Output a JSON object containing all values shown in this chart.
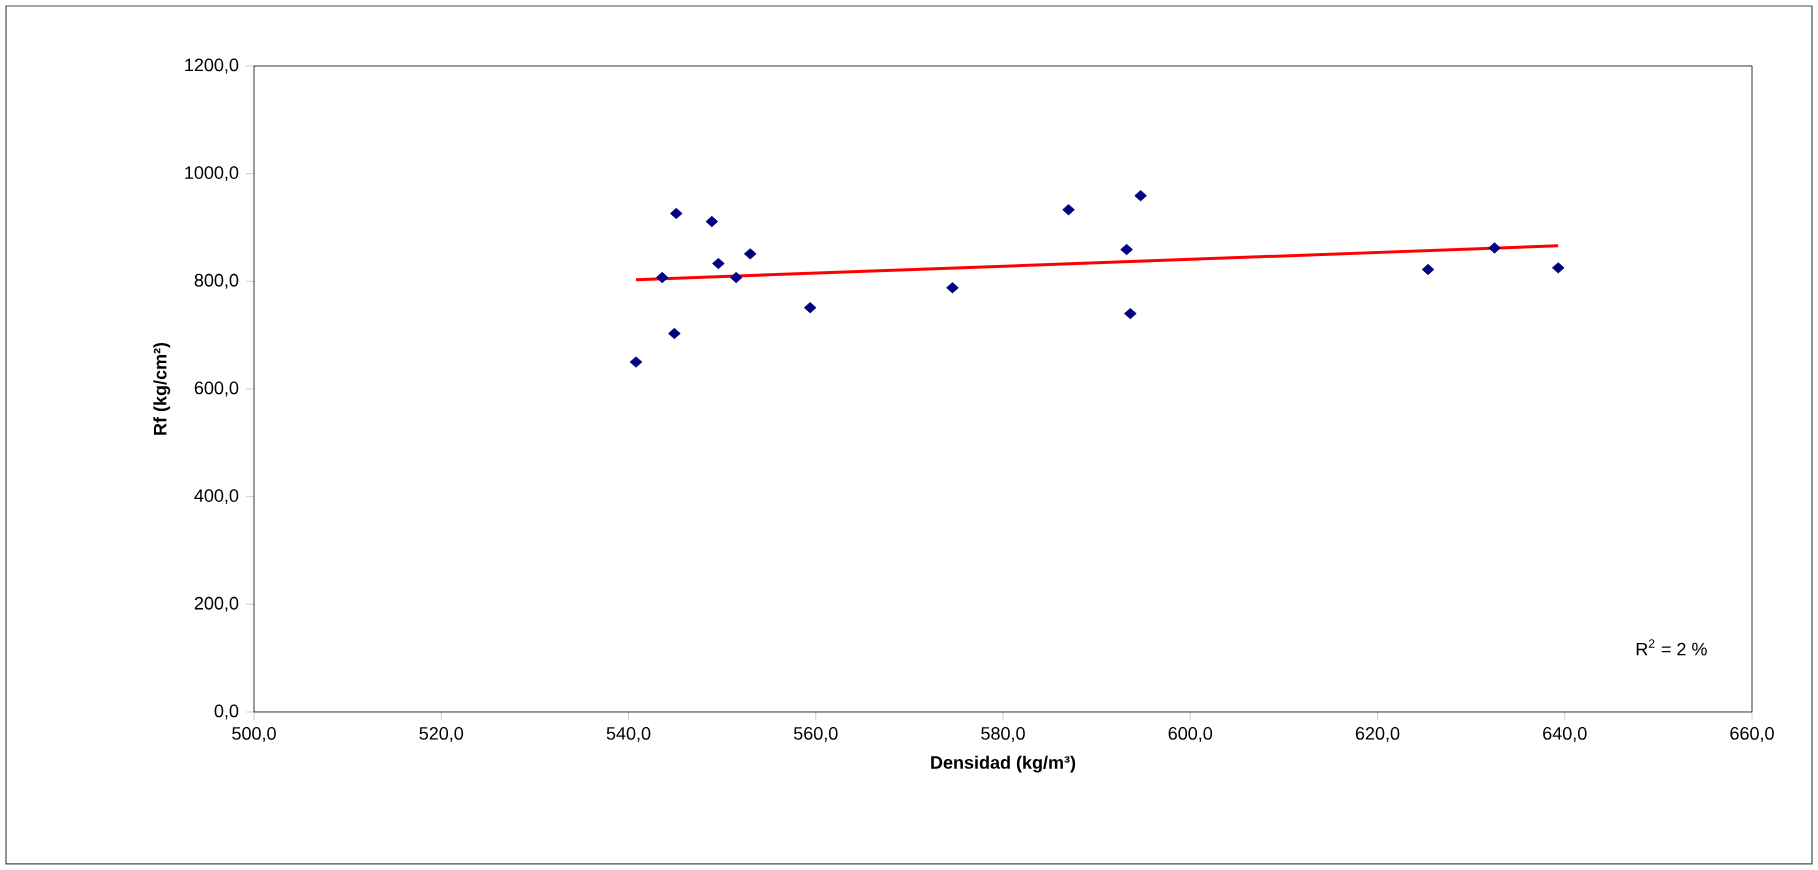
{
  "chart_data": {
    "type": "scatter",
    "xlabel": "Densidad (kg/m³)",
    "ylabel": "Rf (kg/cm²)",
    "annotations": [
      "R$^{2}$ = 2 %"
    ],
    "xlim": [
      500,
      660
    ],
    "ylim": [
      0,
      1200
    ],
    "xticks": [
      {
        "value": 500,
        "label": "500,0"
      },
      {
        "value": 520,
        "label": "520,0"
      },
      {
        "value": 540,
        "label": "540,0"
      },
      {
        "value": 560,
        "label": "560,0"
      },
      {
        "value": 580,
        "label": "580,0"
      },
      {
        "value": 600,
        "label": "600,0"
      },
      {
        "value": 620,
        "label": "620,0"
      },
      {
        "value": 640,
        "label": "640,0"
      },
      {
        "value": 660,
        "label": "660,0"
      }
    ],
    "yticks": [
      {
        "value": 0,
        "label": "0,0"
      },
      {
        "value": 200,
        "label": "200,0"
      },
      {
        "value": 400,
        "label": "400,0"
      },
      {
        "value": 600,
        "label": "600,0"
      },
      {
        "value": 800,
        "label": "800,0"
      },
      {
        "value": 1000,
        "label": "1000,0"
      },
      {
        "value": 1200,
        "label": "1200,0"
      }
    ],
    "grid": false,
    "series": [
      {
        "color": "#000080",
        "marker": "diamond",
        "x": [
          540.8,
          543.6,
          545.1,
          544.9,
          548.9,
          549.6,
          551.5,
          553.0,
          559.4,
          574.6,
          587.0,
          593.2,
          593.6,
          594.7,
          625.4,
          632.5,
          639.3
        ],
        "values": [
          650,
          807,
          926,
          703,
          911,
          833,
          807,
          851,
          751,
          788,
          933,
          859,
          740,
          959,
          822,
          862,
          825
        ]
      },
      {
        "type": "line",
        "color": "#ff0000",
        "marker": "none",
        "line_style": "solid",
        "x": [
          540.8,
          639.3
        ],
        "values": [
          803,
          866
        ]
      }
    ]
  }
}
